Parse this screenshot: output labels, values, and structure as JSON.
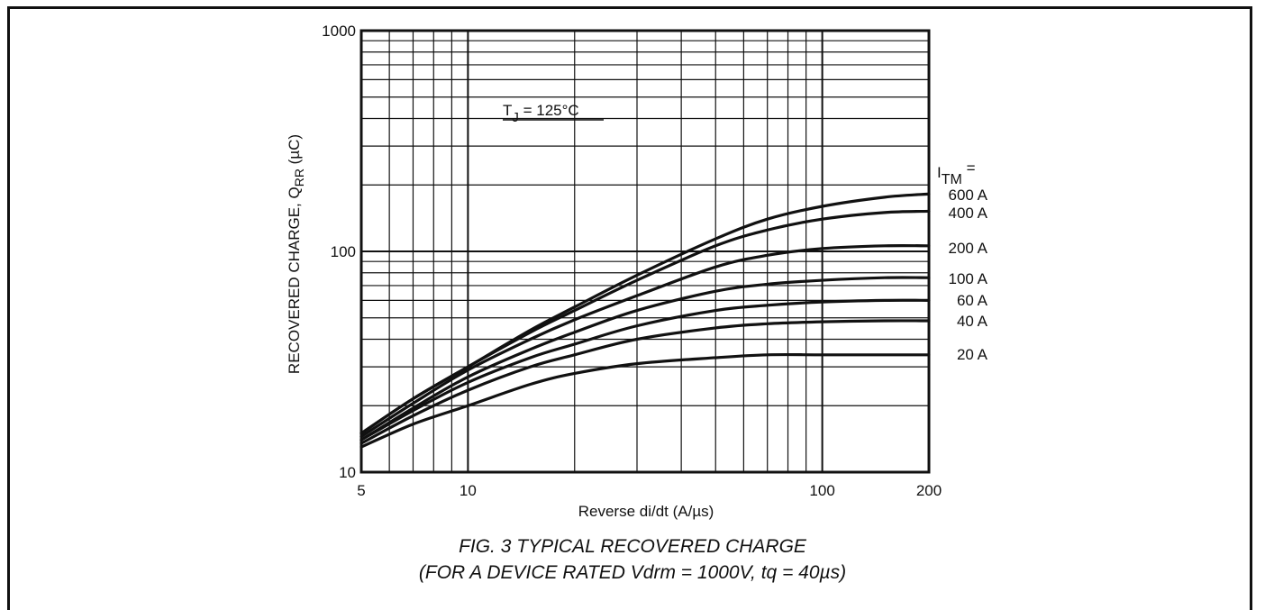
{
  "figure": {
    "caption_line1": "FIG. 3 TYPICAL RECOVERED CHARGE",
    "caption_line2": "(FOR A DEVICE RATED Vdrm = 1000V, tq = 40µs)"
  },
  "chart_data": {
    "type": "line",
    "title": "",
    "xlabel": "Reverse di/dt (A/µs)",
    "ylabel_main": "RECOVERED CHARGE, Q",
    "ylabel_sub": "RR",
    "ylabel_tail": " (µC)",
    "x_scale": "log",
    "y_scale": "log",
    "xlim": [
      5,
      200
    ],
    "ylim": [
      10,
      1000
    ],
    "x_ticks": [
      5,
      10,
      100,
      200
    ],
    "x_tick_labels": [
      "5",
      "10",
      "100",
      "200"
    ],
    "y_ticks": [
      10,
      100,
      1000
    ],
    "y_tick_labels": [
      "10",
      "100",
      "1000"
    ],
    "grid": true,
    "annotation": {
      "symbol": "T",
      "sub": "J",
      "text": " = 125°C"
    },
    "legend_title": {
      "symbol": "I",
      "sub": "TM",
      "text": " ="
    },
    "x": [
      5,
      7,
      10,
      15,
      20,
      30,
      50,
      70,
      100,
      150,
      200
    ],
    "series": [
      {
        "name": "600 A",
        "values": [
          15,
          21.5,
          30,
          44,
          56,
          78,
          114,
          140,
          160,
          176,
          182
        ]
      },
      {
        "name": "400 A",
        "values": [
          15,
          21.5,
          30,
          43,
          54,
          74,
          106,
          125,
          140,
          150,
          152
        ]
      },
      {
        "name": "200 A",
        "values": [
          14.5,
          20.5,
          29,
          40,
          49,
          63,
          85,
          96,
          103,
          106,
          106
        ]
      },
      {
        "name": "100 A",
        "values": [
          14,
          19.5,
          27,
          36,
          43,
          54,
          66,
          71,
          74,
          76,
          76
        ]
      },
      {
        "name": "60 A",
        "values": [
          14,
          19,
          25.5,
          33,
          38,
          46,
          54,
          57,
          59,
          60,
          60
        ]
      },
      {
        "name": "40 A",
        "values": [
          13.5,
          18,
          23.5,
          30,
          34,
          40,
          45,
          47,
          48,
          48.5,
          48.5
        ]
      },
      {
        "name": "20 A",
        "values": [
          13,
          16.5,
          20,
          25,
          28,
          31,
          33,
          34,
          34,
          34,
          34
        ]
      }
    ]
  }
}
